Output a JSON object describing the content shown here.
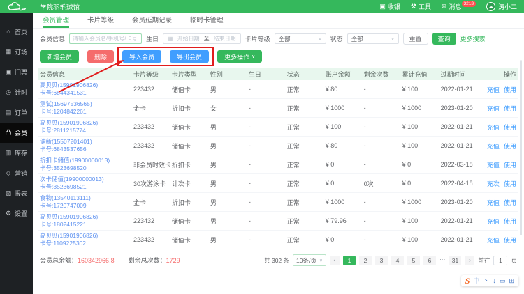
{
  "colors": {
    "primary_green": "#35b85c",
    "danger_red": "#f56c6c",
    "action_blue": "#409eff",
    "link_blue": "#5d91f0",
    "annotation_red": "#e11d1d",
    "badge_red": "#ff4d4f",
    "table_header_bg": "#e8f7ee",
    "sidebar_bg": "#1e2124"
  },
  "topbar": {
    "title": "学院羽毛球馆",
    "items": [
      {
        "icon": "cashier-icon",
        "glyph": "▣",
        "label": "收银"
      },
      {
        "icon": "tools-icon",
        "glyph": "⚒",
        "label": "工具"
      },
      {
        "icon": "message-icon",
        "glyph": "✉",
        "label": "消息",
        "badge": "3213"
      }
    ],
    "user": {
      "name": "涛小二",
      "avatar_glyph": "☁"
    }
  },
  "sidebar": {
    "items": [
      {
        "icon": "home-icon",
        "glyph": "⌂",
        "label": "首页"
      },
      {
        "icon": "court-booking-icon",
        "glyph": "▦",
        "label": "订场"
      },
      {
        "icon": "ticket-icon",
        "glyph": "▣",
        "label": "门票"
      },
      {
        "icon": "timer-icon",
        "glyph": "◷",
        "label": "计时"
      },
      {
        "icon": "order-icon",
        "glyph": "▤",
        "label": "订单"
      },
      {
        "icon": "member-icon",
        "glyph": "凸",
        "label": "会员",
        "active": true
      },
      {
        "icon": "inventory-icon",
        "glyph": "▥",
        "label": "库存"
      },
      {
        "icon": "marketing-icon",
        "glyph": "◇",
        "label": "营销"
      },
      {
        "icon": "report-icon",
        "glyph": "▧",
        "label": "报表"
      },
      {
        "icon": "settings-icon",
        "glyph": "⚙",
        "label": "设置"
      }
    ]
  },
  "tabs": [
    {
      "label": "会员管理",
      "active": true
    },
    {
      "label": "卡片等级",
      "active": false
    },
    {
      "label": "会员延期记录",
      "active": false
    },
    {
      "label": "临时卡管理",
      "active": false
    }
  ],
  "filters": {
    "member_label": "会员信息",
    "member_placeholder": "请输入会员名/手机号/卡号",
    "birthday_label": "生日",
    "start_placeholder": "开始日期",
    "to_label": "至",
    "end_placeholder": "结束日期",
    "level_label": "卡片等级",
    "level_value": "全部",
    "status_label": "状态",
    "status_value": "全部",
    "reset_label": "重置",
    "search_label": "查询",
    "more_label": "更多搜索"
  },
  "actions": {
    "add": "新增会员",
    "delete": "删除",
    "import": "导入会员",
    "export": "导出会员",
    "more": "更多操作",
    "more_caret": "∨"
  },
  "table": {
    "columns": [
      "会员信息",
      "卡片等级",
      "卡片类型",
      "性别",
      "生日",
      "状态",
      "账户余额",
      "剩余次数",
      "累计充值",
      "过期时间",
      "操作"
    ],
    "rows": [
      {
        "name": "高贝贝(15901906826)",
        "card": "卡号:6844341531",
        "level": "223432",
        "type": "储值卡",
        "gender": "男",
        "birthday": "-",
        "status": "正常",
        "balance": "¥ 80",
        "remain": "-",
        "total": "¥ 100",
        "expire": "2022-01-21",
        "ops": [
          "充值",
          "使用"
        ]
      },
      {
        "name": "测试(15697536565)",
        "card": "卡号:1204842261",
        "level": "金卡",
        "type": "折扣卡",
        "gender": "女",
        "birthday": "-",
        "status": "正常",
        "balance": "¥ 1000",
        "remain": "-",
        "total": "¥ 1000",
        "expire": "2023-01-20",
        "ops": [
          "充值",
          "使用"
        ]
      },
      {
        "name": "高贝贝(15901906826)",
        "card": "卡号:2811215774",
        "level": "223432",
        "type": "储值卡",
        "gender": "男",
        "birthday": "-",
        "status": "正常",
        "balance": "¥ 100",
        "remain": "-",
        "total": "¥ 100",
        "expire": "2022-01-21",
        "ops": [
          "充值",
          "使用"
        ]
      },
      {
        "name": "健新(15507201401)",
        "card": "卡号:6843537656",
        "level": "223432",
        "type": "储值卡",
        "gender": "男",
        "birthday": "-",
        "status": "正常",
        "balance": "¥ 80",
        "remain": "-",
        "total": "¥ 100",
        "expire": "2022-01-21",
        "ops": [
          "充值",
          "使用"
        ]
      },
      {
        "name": "折扣卡储值(19900000013)",
        "card": "卡号:3523698520",
        "level": "非会员时效卡",
        "type": "折扣卡",
        "gender": "男",
        "birthday": "-",
        "status": "正常",
        "balance": "¥ 0",
        "remain": "-",
        "total": "¥ 0",
        "expire": "2022-03-18",
        "ops": [
          "充值",
          "使用"
        ]
      },
      {
        "name": "次卡储值(19900000013)",
        "card": "卡号:3523698521",
        "level": "30次游泳卡",
        "type": "计次卡",
        "gender": "男",
        "birthday": "-",
        "status": "正常",
        "balance": "¥ 0",
        "remain": "0次",
        "total": "¥ 0",
        "expire": "2022-04-18",
        "ops": [
          "充次",
          "使用"
        ]
      },
      {
        "name": "食物(13540113111)",
        "card": "卡号:1720747009",
        "level": "金卡",
        "type": "折扣卡",
        "gender": "男",
        "birthday": "-",
        "status": "正常",
        "balance": "¥ 1000",
        "remain": "-",
        "total": "¥ 1000",
        "expire": "2023-01-20",
        "ops": [
          "充值",
          "使用"
        ]
      },
      {
        "name": "高贝贝(15901906826)",
        "card": "卡号:1802415221",
        "level": "223432",
        "type": "储值卡",
        "gender": "男",
        "birthday": "-",
        "status": "正常",
        "balance": "¥ 79.96",
        "remain": "-",
        "total": "¥ 100",
        "expire": "2022-01-21",
        "ops": [
          "充值",
          "使用"
        ]
      },
      {
        "name": "高贝贝(15901906826)",
        "card": "卡号:1109225302",
        "level": "223432",
        "type": "储值卡",
        "gender": "男",
        "birthday": "-",
        "status": "正常",
        "balance": "¥ 0",
        "remain": "-",
        "total": "¥ 100",
        "expire": "2022-01-21",
        "ops": [
          "充值",
          "使用"
        ]
      }
    ]
  },
  "summary": {
    "balance_label": "会员总余额：",
    "balance_value": "160342966.8",
    "times_label": "剩余总次数：",
    "times_value": "1729"
  },
  "pagination": {
    "total": "共 302 条",
    "page_size": "10条/页",
    "prev": "‹",
    "next": "›",
    "pages": [
      "1",
      "2",
      "3",
      "4",
      "5",
      "6",
      "...",
      "31"
    ],
    "active_page": "1",
    "goto_label": "前往",
    "goto_value": "1",
    "goto_suffix": "页"
  },
  "ime": {
    "logo": "S",
    "mode": "中",
    "icons": [
      {
        "name": "punctuation-icon",
        "glyph": "丶"
      },
      {
        "name": "input-switch-icon",
        "glyph": "↓"
      },
      {
        "name": "soft-keyboard-icon",
        "glyph": "▭"
      },
      {
        "name": "toolbox-icon",
        "glyph": "⊞"
      }
    ]
  }
}
